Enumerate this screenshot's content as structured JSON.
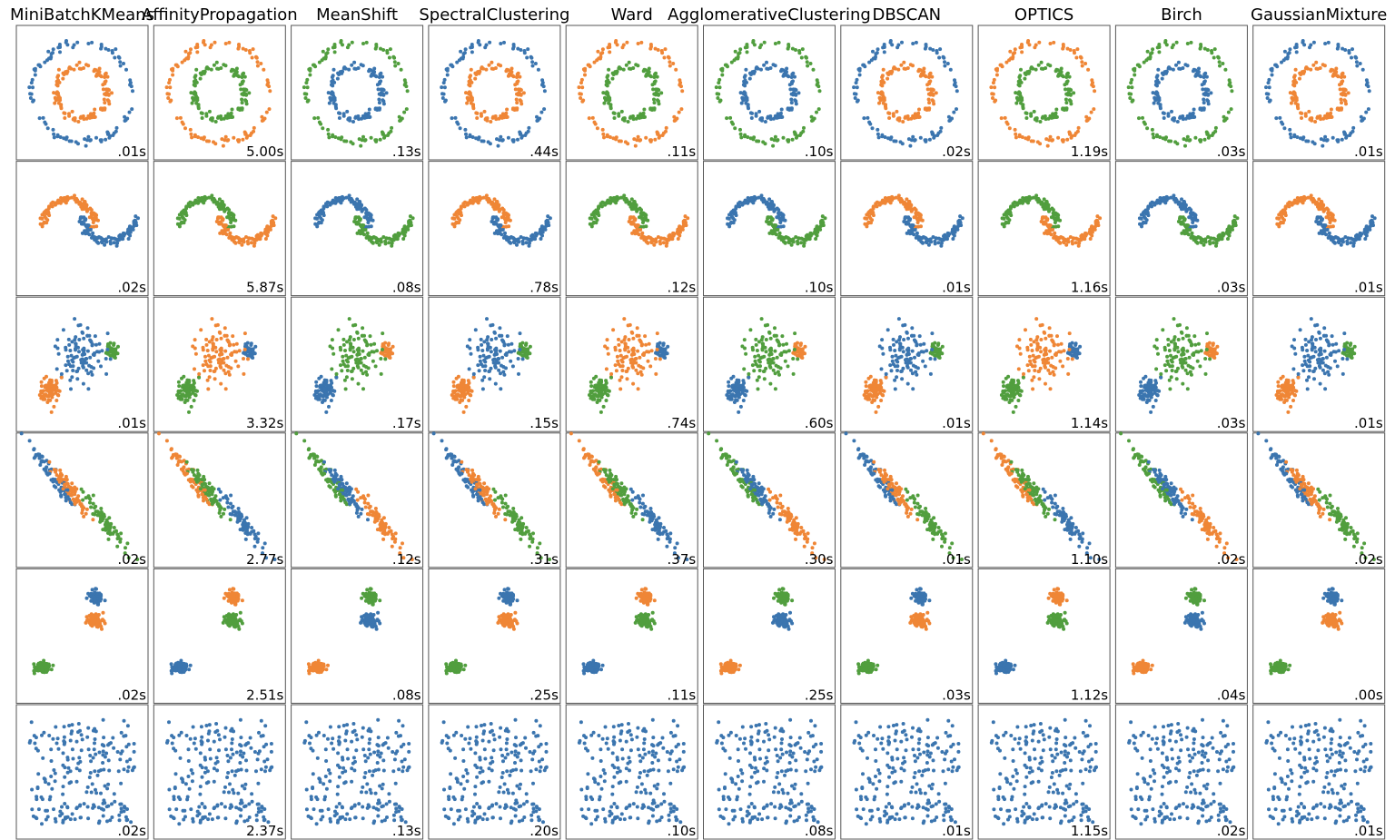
{
  "columns": [
    "MiniBatchKMeans",
    "AffinityPropagation",
    "MeanShift",
    "SpectralClustering",
    "Ward",
    "AgglomerativeClustering",
    "DBSCAN",
    "OPTICS",
    "Birch",
    "GaussianMixture"
  ],
  "rows": [
    {
      "times": [
        ".01s",
        "5.00s",
        ".13s",
        ".44s",
        ".11s",
        ".10s",
        ".02s",
        "1.19s",
        ".03s",
        ".01s"
      ]
    },
    {
      "times": [
        ".02s",
        "5.87s",
        ".08s",
        ".78s",
        ".12s",
        ".10s",
        ".01s",
        "1.16s",
        ".03s",
        ".01s"
      ]
    },
    {
      "times": [
        ".01s",
        "3.32s",
        ".17s",
        ".15s",
        ".74s",
        ".60s",
        ".01s",
        "1.14s",
        ".03s",
        ".01s"
      ]
    },
    {
      "times": [
        ".02s",
        "2.77s",
        ".12s",
        ".31s",
        ".37s",
        ".30s",
        ".01s",
        "1.10s",
        ".02s",
        ".02s"
      ]
    },
    {
      "times": [
        ".02s",
        "2.51s",
        ".08s",
        ".25s",
        ".11s",
        ".25s",
        ".03s",
        "1.12s",
        ".04s",
        ".00s"
      ]
    },
    {
      "times": [
        ".02s",
        "2.37s",
        ".13s",
        ".20s",
        ".10s",
        ".08s",
        ".01s",
        "1.15s",
        ".02s",
        ".01s"
      ]
    }
  ]
}
